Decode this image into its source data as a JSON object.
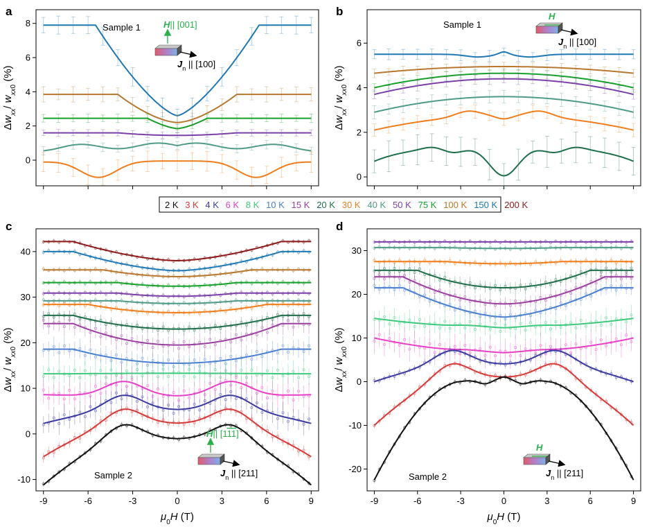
{
  "chart_data": [
    {
      "panel": "a",
      "type": "line",
      "sample_label": "Sample 1",
      "field_label": "H",
      "field_dir": "|| [001]",
      "current_label": "J",
      "current_sub": "n",
      "current_dir": "|| [100]",
      "xlabel": "μ0H (T)",
      "ylabel": "Δwxx/wxx0 (%)",
      "xlim": [
        -9.5,
        9.5
      ],
      "ylim": [
        -1.5,
        8.8
      ],
      "xticks": [
        -9,
        -6,
        -3,
        0,
        3,
        6,
        9
      ],
      "xticklabels": [],
      "yticks": [
        0,
        2,
        4,
        6,
        8
      ],
      "series": [
        {
          "name": "150 K",
          "color": "#1f78b4",
          "shape": "v",
          "y0": 2.6,
          "yinf": 7.9,
          "w": 5.5,
          "p": 1.4,
          "err": 0.55
        },
        {
          "name": "100 K",
          "color": "#b8772e",
          "shape": "v",
          "y0": 2.2,
          "yinf": 3.85,
          "w": 4.0,
          "p": 1.6,
          "err": 0.45
        },
        {
          "name": "75 K",
          "color": "#16a02a",
          "shape": "v",
          "y0": 1.85,
          "yinf": 2.45,
          "w": 2.0,
          "p": 1.5,
          "err": 0.25
        },
        {
          "name": "50 K",
          "color": "#7b3fa8",
          "shape": "flat",
          "y0": 1.45,
          "yinf": 1.6,
          "w": 4.0,
          "p": 2,
          "err": 0.2
        },
        {
          "name": "40 K",
          "color": "#4f9a86",
          "shape": "humpy",
          "y0": 0.85,
          "yinf": 0.7,
          "w": 4.0,
          "p": 2,
          "err": 0.25
        },
        {
          "name": "30 K",
          "color": "#f07d1c",
          "shape": "plateau",
          "y0": -0.05,
          "yinf": -0.1,
          "w": 4.0,
          "p": 2,
          "err": 0.6
        }
      ]
    },
    {
      "panel": "b",
      "type": "line",
      "sample_label": "Sample 1",
      "field_label": "H",
      "field_dir": "",
      "current_label": "J",
      "current_sub": "n",
      "current_dir": "|| [100]",
      "xlabel": "μ0H (T)",
      "ylabel": "Δwxx/wxx0 (%)",
      "xlim": [
        -9.5,
        9.5
      ],
      "ylim": [
        -0.4,
        7.5
      ],
      "xticks": [
        -9,
        -6,
        -3,
        0,
        3,
        6,
        9
      ],
      "xticklabels": [],
      "yticks": [
        0,
        2,
        4,
        6
      ],
      "series": [
        {
          "name": "150 K",
          "color": "#1f78b4",
          "shape": "bwave",
          "y0": 5.5,
          "yinf": 5.5,
          "w": 2,
          "p": 2,
          "err": 0.25
        },
        {
          "name": "100 K",
          "color": "#b8772e",
          "shape": "dome",
          "y0": 4.95,
          "yinf": 4.65,
          "w": 6,
          "p": 2,
          "err": 0.2
        },
        {
          "name": "75 K",
          "color": "#16a02a",
          "shape": "dome",
          "y0": 4.65,
          "yinf": 4.0,
          "w": 6,
          "p": 2,
          "err": 0.2
        },
        {
          "name": "50 K",
          "color": "#7b3fa8",
          "shape": "dome",
          "y0": 4.4,
          "yinf": 3.7,
          "w": 6,
          "p": 2,
          "err": 0.25
        },
        {
          "name": "40 K",
          "color": "#4f9a86",
          "shape": "dome",
          "y0": 3.6,
          "yinf": 2.9,
          "w": 6,
          "p": 2,
          "err": 0.3
        },
        {
          "name": "30 K",
          "color": "#f07d1c",
          "shape": "dip",
          "y0": 2.75,
          "yinf": 2.1,
          "w": 6,
          "p": 2,
          "err": 0.3
        },
        {
          "name": "20 K",
          "color": "#1f6e4a",
          "shape": "deepdip",
          "y0": 0.05,
          "yinf": 0.7,
          "w": 4,
          "p": 2,
          "err": 0.7
        }
      ]
    },
    {
      "panel": "c",
      "type": "line",
      "sample_label": "Sample 2",
      "field_label": "H",
      "field_dir": "|| [1 -1 -1]",
      "current_label": "J",
      "current_sub": "n",
      "current_dir": "|| [211]",
      "xlabel": "μ0H (T)",
      "ylabel": "Δwxx/wxx0 (%)",
      "xlim": [
        -9.5,
        9.5
      ],
      "ylim": [
        -12.5,
        45
      ],
      "xticks": [
        -9,
        -6,
        -3,
        0,
        3,
        6,
        9
      ],
      "xticklabels": [
        "-9",
        "-6",
        "-3",
        "0",
        "3",
        "6",
        "9"
      ],
      "yticks": [
        -10,
        0,
        10,
        20,
        30,
        40
      ],
      "series": [
        {
          "name": "200 K",
          "color": "#8b1a1a",
          "shape": "v",
          "y0": 38,
          "yinf": 42.2,
          "w": 7,
          "p": 1.6,
          "err": 0.5
        },
        {
          "name": "150 K",
          "color": "#1f78b4",
          "shape": "v",
          "y0": 35.8,
          "yinf": 40,
          "w": 7,
          "p": 1.6,
          "err": 0.6
        },
        {
          "name": "100 K",
          "color": "#b8772e",
          "shape": "v",
          "y0": 34.5,
          "yinf": 36,
          "w": 5,
          "p": 1.8,
          "err": 0.6
        },
        {
          "name": "75 K",
          "color": "#16a02a",
          "shape": "v",
          "y0": 32.4,
          "yinf": 33.2,
          "w": 4,
          "p": 2,
          "err": 0.6
        },
        {
          "name": "50 K",
          "color": "#7b3fa8",
          "shape": "v",
          "y0": 30.2,
          "yinf": 30.9,
          "w": 4,
          "p": 2,
          "err": 0.6
        },
        {
          "name": "40 K",
          "color": "#4f9a86",
          "shape": "v",
          "y0": 28.6,
          "yinf": 29.2,
          "w": 4,
          "p": 2,
          "err": 0.6
        },
        {
          "name": "30 K",
          "color": "#f07d1c",
          "shape": "v",
          "y0": 26.6,
          "yinf": 28.4,
          "w": 6,
          "p": 2,
          "err": 0.8
        },
        {
          "name": "20 K",
          "color": "#1f6e4a",
          "shape": "v",
          "y0": 23,
          "yinf": 26,
          "w": 7,
          "p": 2,
          "err": 1.2
        },
        {
          "name": "15 K",
          "color": "#9b3fa0",
          "shape": "v",
          "y0": 19.5,
          "yinf": 24.2,
          "w": 7,
          "p": 2,
          "err": 2.2
        },
        {
          "name": "10 K",
          "color": "#4a7fd0",
          "shape": "v",
          "y0": 15.5,
          "yinf": 18.6,
          "w": 7,
          "p": 2,
          "err": 2.2
        },
        {
          "name": "8 K",
          "color": "#3cc97a",
          "shape": "v",
          "y0": 13.3,
          "yinf": 13.2,
          "w": 7,
          "p": 2,
          "err": 2.5
        },
        {
          "name": "6 K",
          "color": "#e83fc6",
          "shape": "camel",
          "y0": 8.3,
          "yinf": 8.6,
          "w": 7,
          "p": 2,
          "err": 3
        },
        {
          "name": "4 K",
          "color": "#3a3aa0",
          "shape": "camel",
          "y0": 5.3,
          "yinf": 2.3,
          "w": 7,
          "p": 2,
          "err": 2.5
        },
        {
          "name": "3 K",
          "color": "#d63a3a",
          "shape": "camel",
          "y0": 2.3,
          "yinf": -5,
          "w": 7,
          "p": 2,
          "err": 1.2
        },
        {
          "name": "2 K",
          "color": "#111111",
          "shape": "camel",
          "y0": -1.1,
          "yinf": -11.2,
          "w": 7,
          "p": 2,
          "err": 0.6
        }
      ]
    },
    {
      "panel": "d",
      "type": "line",
      "sample_label": "Sample 2",
      "field_label": "H",
      "field_dir": "",
      "current_label": "J",
      "current_sub": "n",
      "current_dir": "|| [211]",
      "xlabel": "μ0H (T)",
      "ylabel": "Δwxx/wxx0 (%)",
      "xlim": [
        -9.5,
        9.5
      ],
      "ylim": [
        -25,
        35
      ],
      "xticks": [
        -9,
        -6,
        -3,
        0,
        3,
        6,
        9
      ],
      "xticklabels": [
        "-9",
        "-6",
        "-3",
        "0",
        "3",
        "6",
        "9"
      ],
      "yticks": [
        -20,
        -10,
        0,
        10,
        20,
        30
      ],
      "series": [
        {
          "name": "50 K",
          "color": "#7b3fa8",
          "shape": "v",
          "y0": 32,
          "yinf": 32,
          "w": 4,
          "p": 2,
          "err": 0.5
        },
        {
          "name": "40 K",
          "color": "#4f9a86",
          "shape": "v",
          "y0": 30.5,
          "yinf": 30.7,
          "w": 4,
          "p": 2,
          "err": 0.6
        },
        {
          "name": "30 K",
          "color": "#f07d1c",
          "shape": "v",
          "y0": 27,
          "yinf": 27.5,
          "w": 4,
          "p": 2,
          "err": 0.8
        },
        {
          "name": "20 K",
          "color": "#1f6e4a",
          "shape": "v",
          "y0": 21.5,
          "yinf": 25.5,
          "w": 6,
          "p": 2,
          "err": 1.5
        },
        {
          "name": "15 K",
          "color": "#9b3fa0",
          "shape": "v",
          "y0": 17.8,
          "yinf": 24,
          "w": 7,
          "p": 1.8,
          "err": 1.5
        },
        {
          "name": "10 K",
          "color": "#4a7fd0",
          "shape": "v",
          "y0": 14.8,
          "yinf": 21.5,
          "w": 7,
          "p": 1.6,
          "err": 1.5
        },
        {
          "name": "8 K",
          "color": "#3cc97a",
          "shape": "dip",
          "y0": 12.5,
          "yinf": 14.5,
          "w": 6,
          "p": 2,
          "err": 2.5
        },
        {
          "name": "6 K",
          "color": "#e83fc6",
          "shape": "dip",
          "y0": 6.8,
          "yinf": 10,
          "w": 6,
          "p": 2,
          "err": 3
        },
        {
          "name": "4 K",
          "color": "#3a3aa0",
          "shape": "camel",
          "y0": 4,
          "yinf": 0,
          "w": 7,
          "p": 2,
          "err": 0.8
        },
        {
          "name": "3 K",
          "color": "#d63a3a",
          "shape": "camel",
          "y0": 1,
          "yinf": -10,
          "w": 7,
          "p": 2,
          "err": 0.8
        },
        {
          "name": "2 K",
          "color": "#111111",
          "shape": "camel2",
          "y0": 0.5,
          "yinf": -22.5,
          "w": 7,
          "p": 2,
          "err": 0.6
        }
      ]
    }
  ],
  "legend": {
    "items": [
      {
        "label": "2 K",
        "color": "#111111"
      },
      {
        "label": "3 K",
        "color": "#d63a3a"
      },
      {
        "label": "4 K",
        "color": "#3a3aa0"
      },
      {
        "label": "6 K",
        "color": "#e83fc6"
      },
      {
        "label": "8 K",
        "color": "#3cc97a"
      },
      {
        "label": "10 K",
        "color": "#4a7fd0"
      },
      {
        "label": "15 K",
        "color": "#9b3fa0"
      },
      {
        "label": "20 K",
        "color": "#1f6e4a"
      },
      {
        "label": "30 K",
        "color": "#f07d1c"
      },
      {
        "label": "40 K",
        "color": "#4f9a86"
      },
      {
        "label": "50 K",
        "color": "#7b3fa8"
      },
      {
        "label": "75 K",
        "color": "#16a02a"
      },
      {
        "label": "100 K",
        "color": "#b8772e"
      },
      {
        "label": "150 K",
        "color": "#1f78b4"
      },
      {
        "label": "200 K",
        "color": "#8b1a1a"
      }
    ]
  }
}
